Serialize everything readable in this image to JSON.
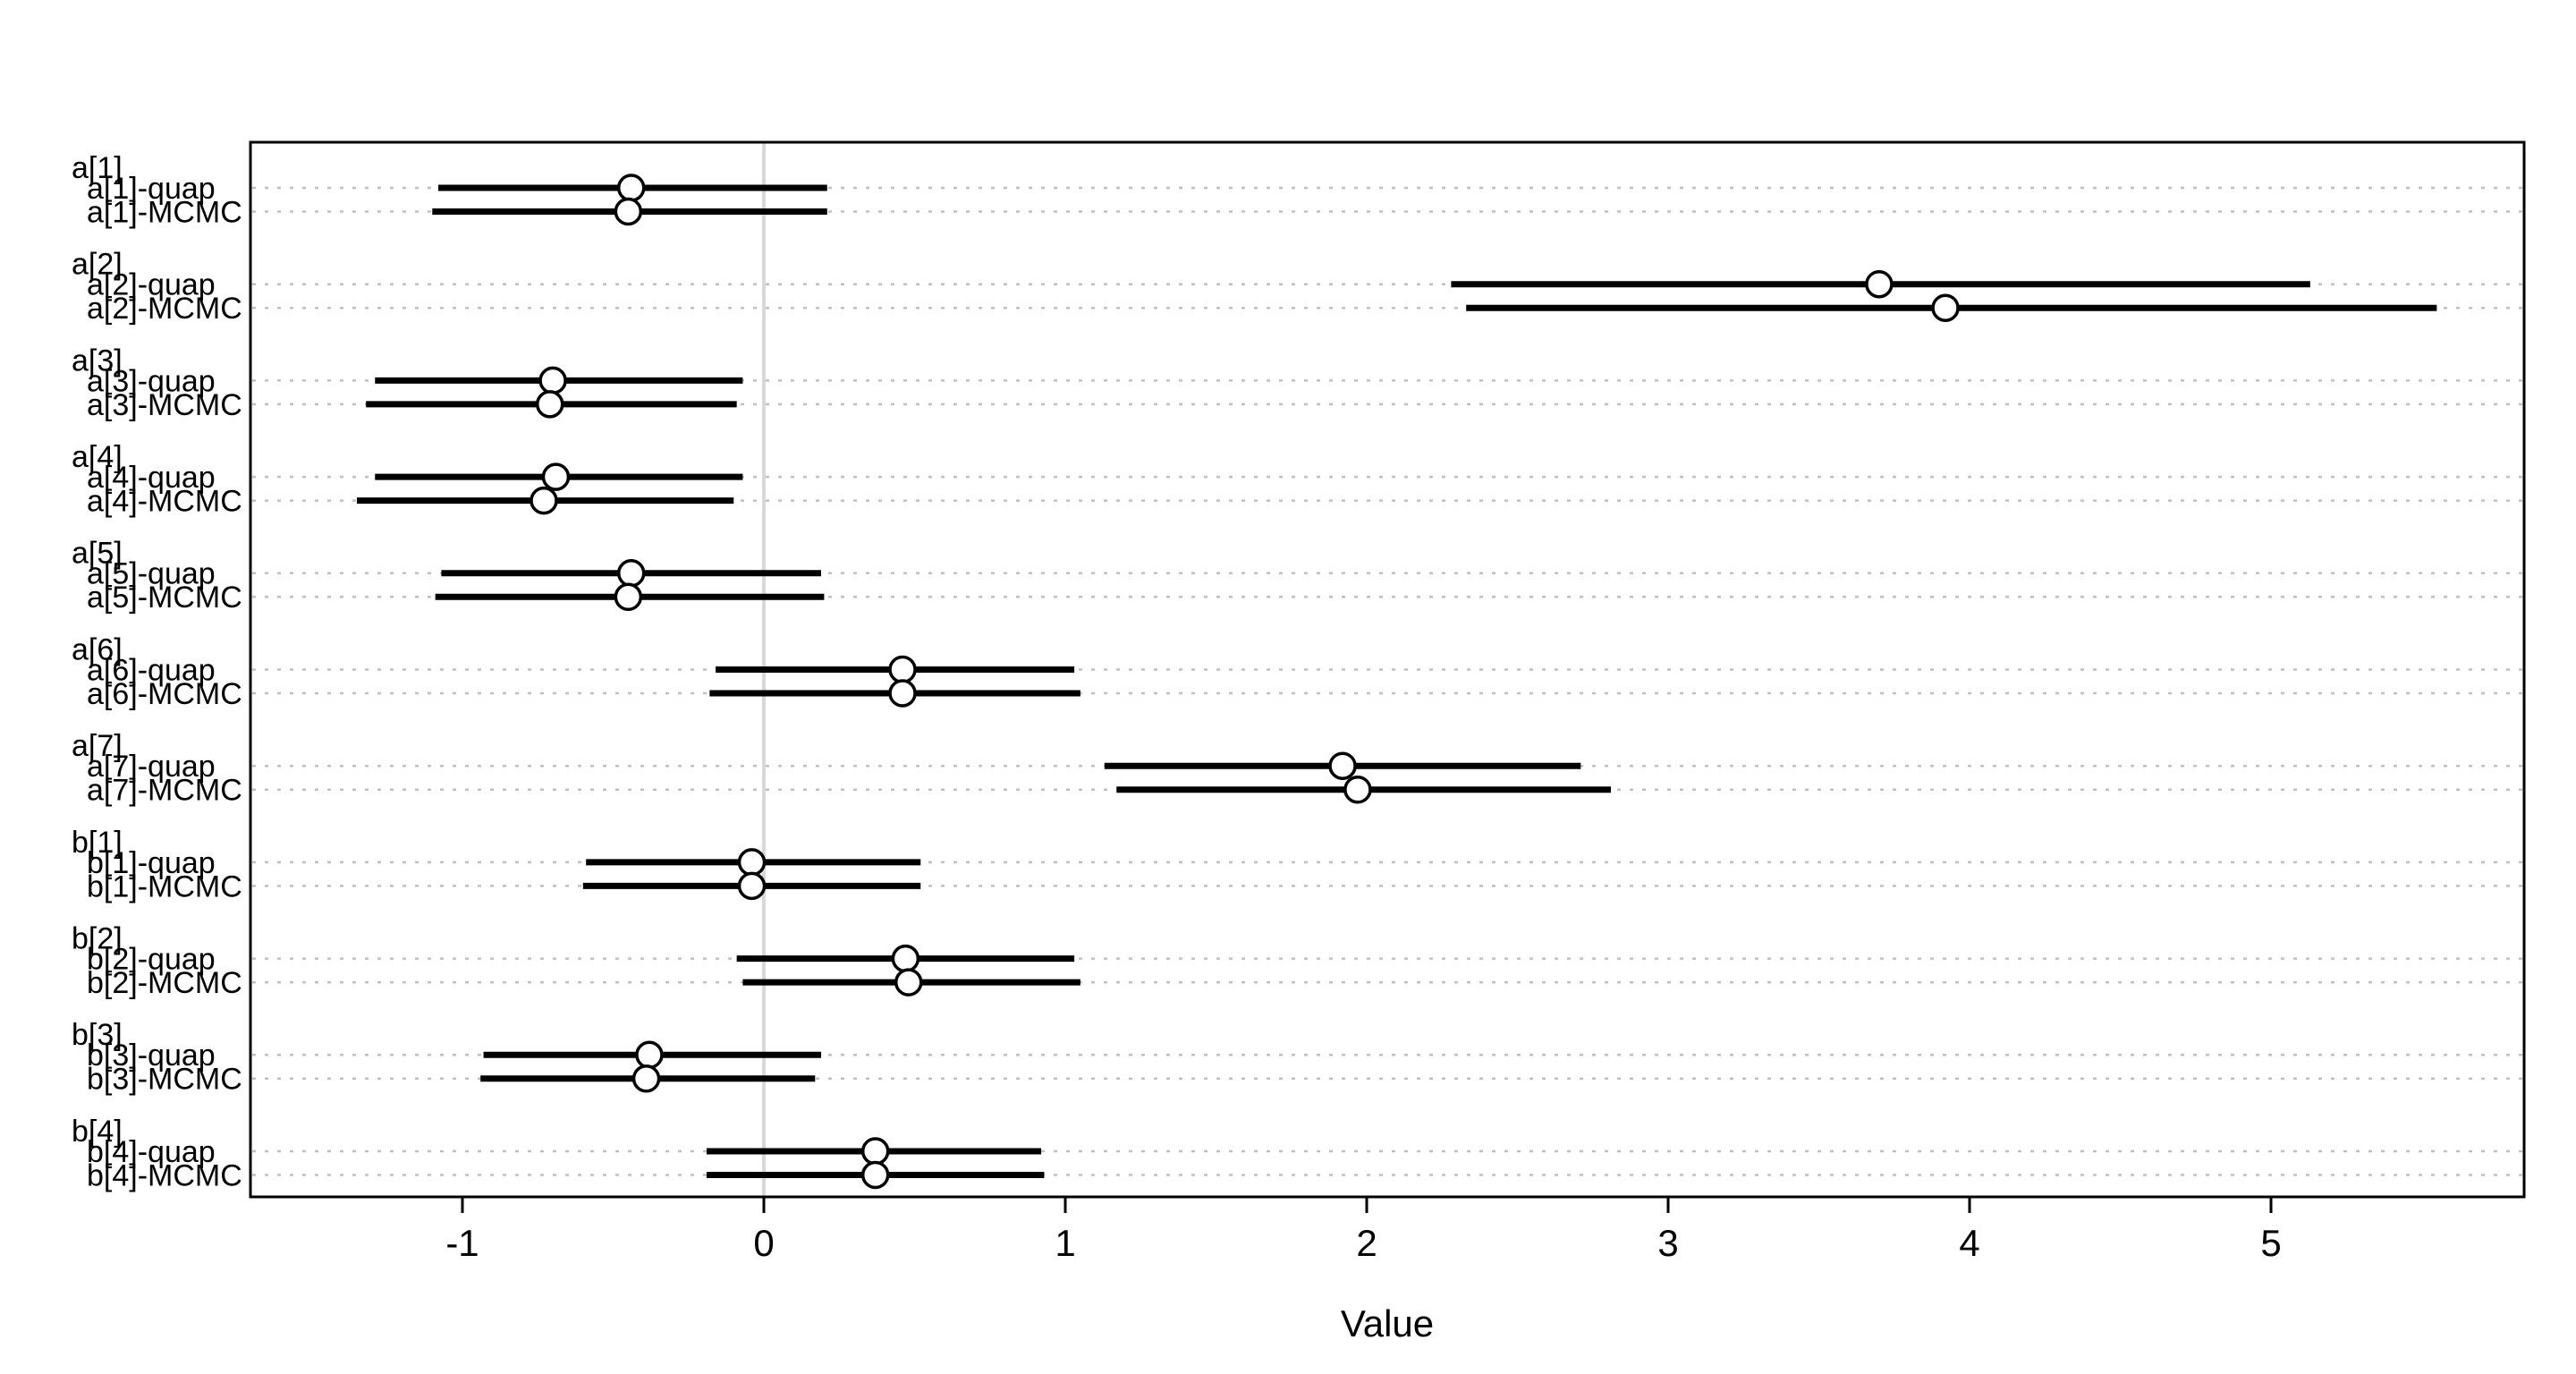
{
  "chart_data": {
    "type": "scatter",
    "style": "forest-interval-comparison (R precis plot: open-circle point estimates with horizontal interval lines)",
    "title": "",
    "xlabel": "Value",
    "ylabel": "",
    "x_ticks": [
      -1,
      0,
      1,
      2,
      3,
      4,
      5
    ],
    "xlim": [
      -1.7,
      5.84
    ],
    "grid": "light dotted horizontal gridline on every data row; light solid vertical reference line at x=0",
    "legend": "none",
    "colors": {
      "interval_line": "#000000",
      "point_fill": "#ffffff",
      "point_stroke": "#000000",
      "gridline": "#c0c0c0",
      "zero_line": "#d8d8d8",
      "frame": "#000000",
      "background": "#ffffff"
    },
    "groups": [
      {
        "name": "a[1]",
        "rows": [
          {
            "label": "a[1]-quap",
            "point": -0.44,
            "lo": -1.08,
            "hi": 0.21
          },
          {
            "label": "a[1]-MCMC",
            "point": -0.45,
            "lo": -1.1,
            "hi": 0.21
          }
        ]
      },
      {
        "name": "a[2]",
        "rows": [
          {
            "label": "a[2]-quap",
            "point": 3.7,
            "lo": 2.28,
            "hi": 5.13
          },
          {
            "label": "a[2]-MCMC",
            "point": 3.92,
            "lo": 2.33,
            "hi": 5.55
          }
        ]
      },
      {
        "name": "a[3]",
        "rows": [
          {
            "label": "a[3]-quap",
            "point": -0.7,
            "lo": -1.29,
            "hi": -0.07
          },
          {
            "label": "a[3]-MCMC",
            "point": -0.71,
            "lo": -1.32,
            "hi": -0.09
          }
        ]
      },
      {
        "name": "a[4]",
        "rows": [
          {
            "label": "a[4]-quap",
            "point": -0.69,
            "lo": -1.29,
            "hi": -0.07
          },
          {
            "label": "a[4]-MCMC",
            "point": -0.73,
            "lo": -1.35,
            "hi": -0.1
          }
        ]
      },
      {
        "name": "a[5]",
        "rows": [
          {
            "label": "a[5]-quap",
            "point": -0.44,
            "lo": -1.07,
            "hi": 0.19
          },
          {
            "label": "a[5]-MCMC",
            "point": -0.45,
            "lo": -1.09,
            "hi": 0.2
          }
        ]
      },
      {
        "name": "a[6]",
        "rows": [
          {
            "label": "a[6]-quap",
            "point": 0.46,
            "lo": -0.16,
            "hi": 1.03
          },
          {
            "label": "a[6]-MCMC",
            "point": 0.46,
            "lo": -0.18,
            "hi": 1.05
          }
        ]
      },
      {
        "name": "a[7]",
        "rows": [
          {
            "label": "a[7]-quap",
            "point": 1.92,
            "lo": 1.13,
            "hi": 2.71
          },
          {
            "label": "a[7]-MCMC",
            "point": 1.97,
            "lo": 1.17,
            "hi": 2.81
          }
        ]
      },
      {
        "name": "b[1]",
        "rows": [
          {
            "label": "b[1]-quap",
            "point": -0.04,
            "lo": -0.59,
            "hi": 0.52
          },
          {
            "label": "b[1]-MCMC",
            "point": -0.04,
            "lo": -0.6,
            "hi": 0.52
          }
        ]
      },
      {
        "name": "b[2]",
        "rows": [
          {
            "label": "b[2]-quap",
            "point": 0.47,
            "lo": -0.09,
            "hi": 1.03
          },
          {
            "label": "b[2]-MCMC",
            "point": 0.48,
            "lo": -0.07,
            "hi": 1.05
          }
        ]
      },
      {
        "name": "b[3]",
        "rows": [
          {
            "label": "b[3]-quap",
            "point": -0.38,
            "lo": -0.93,
            "hi": 0.19
          },
          {
            "label": "b[3]-MCMC",
            "point": -0.39,
            "lo": -0.94,
            "hi": 0.17
          }
        ]
      },
      {
        "name": "b[4]",
        "rows": [
          {
            "label": "b[4]-quap",
            "point": 0.37,
            "lo": -0.19,
            "hi": 0.92
          },
          {
            "label": "b[4]-MCMC",
            "point": 0.37,
            "lo": -0.19,
            "hi": 0.93
          }
        ]
      }
    ]
  }
}
